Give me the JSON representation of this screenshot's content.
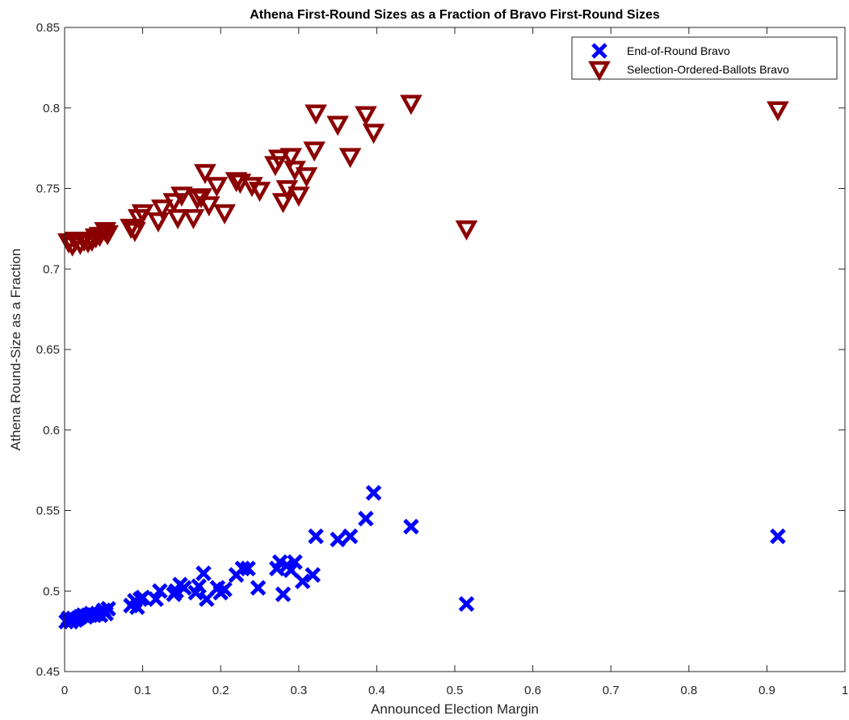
{
  "chart_data": {
    "type": "scatter",
    "title": "Athena First-Round Sizes as a Fraction of Bravo First-Round Sizes",
    "xlabel": "Announced Election Margin",
    "ylabel": "Athena Round-Size as a Fraction",
    "xlim": [
      0,
      1
    ],
    "ylim": [
      0.45,
      0.85
    ],
    "xticks": [
      "0",
      "0.1",
      "0.2",
      "0.3",
      "0.4",
      "0.5",
      "0.6",
      "0.7",
      "0.8",
      "0.9",
      "1"
    ],
    "yticks": [
      "0.45",
      "0.5",
      "0.55",
      "0.6",
      "0.65",
      "0.7",
      "0.75",
      "0.8",
      "0.85"
    ],
    "grid": false,
    "legend_position": "top-right",
    "series": [
      {
        "name": "End-of-Round Bravo",
        "marker": "x",
        "color": "#0000ff",
        "x": [
          0.002,
          0.005,
          0.008,
          0.011,
          0.014,
          0.017,
          0.02,
          0.024,
          0.027,
          0.03,
          0.034,
          0.038,
          0.042,
          0.046,
          0.05,
          0.053,
          0.056,
          0.085,
          0.09,
          0.093,
          0.097,
          0.1,
          0.117,
          0.122,
          0.14,
          0.143,
          0.148,
          0.153,
          0.168,
          0.172,
          0.178,
          0.182,
          0.196,
          0.2,
          0.205,
          0.22,
          0.228,
          0.235,
          0.248,
          0.272,
          0.276,
          0.28,
          0.285,
          0.29,
          0.295,
          0.305,
          0.318,
          0.322,
          0.35,
          0.366,
          0.386,
          0.396,
          0.444,
          0.515,
          0.914
        ],
        "y": [
          0.481,
          0.483,
          0.481,
          0.483,
          0.482,
          0.483,
          0.484,
          0.485,
          0.484,
          0.485,
          0.486,
          0.485,
          0.486,
          0.485,
          0.488,
          0.486,
          0.489,
          0.491,
          0.494,
          0.49,
          0.495,
          0.496,
          0.495,
          0.5,
          0.498,
          0.5,
          0.504,
          0.502,
          0.499,
          0.503,
          0.511,
          0.495,
          0.502,
          0.499,
          0.501,
          0.51,
          0.514,
          0.514,
          0.502,
          0.514,
          0.518,
          0.498,
          0.516,
          0.513,
          0.518,
          0.506,
          0.51,
          0.534,
          0.532,
          0.534,
          0.545,
          0.561,
          0.54,
          0.492,
          0.534
        ]
      },
      {
        "name": "Selection-Ordered-Ballots Bravo",
        "marker": "triangle-down",
        "color": "#8b0000",
        "x": [
          0.005,
          0.01,
          0.014,
          0.02,
          0.025,
          0.03,
          0.035,
          0.04,
          0.045,
          0.052,
          0.055,
          0.085,
          0.09,
          0.095,
          0.1,
          0.12,
          0.125,
          0.14,
          0.145,
          0.15,
          0.165,
          0.17,
          0.175,
          0.18,
          0.185,
          0.195,
          0.205,
          0.22,
          0.225,
          0.24,
          0.25,
          0.27,
          0.275,
          0.28,
          0.285,
          0.29,
          0.295,
          0.3,
          0.31,
          0.32,
          0.322,
          0.35,
          0.366,
          0.386,
          0.396,
          0.444,
          0.515,
          0.914
        ],
        "y": [
          0.717,
          0.715,
          0.718,
          0.716,
          0.718,
          0.717,
          0.718,
          0.72,
          0.721,
          0.724,
          0.722,
          0.726,
          0.724,
          0.732,
          0.735,
          0.73,
          0.738,
          0.742,
          0.732,
          0.746,
          0.732,
          0.744,
          0.745,
          0.76,
          0.74,
          0.752,
          0.735,
          0.755,
          0.754,
          0.752,
          0.749,
          0.765,
          0.769,
          0.742,
          0.75,
          0.77,
          0.762,
          0.746,
          0.758,
          0.774,
          0.797,
          0.79,
          0.77,
          0.796,
          0.785,
          0.803,
          0.725,
          0.799
        ]
      }
    ]
  }
}
